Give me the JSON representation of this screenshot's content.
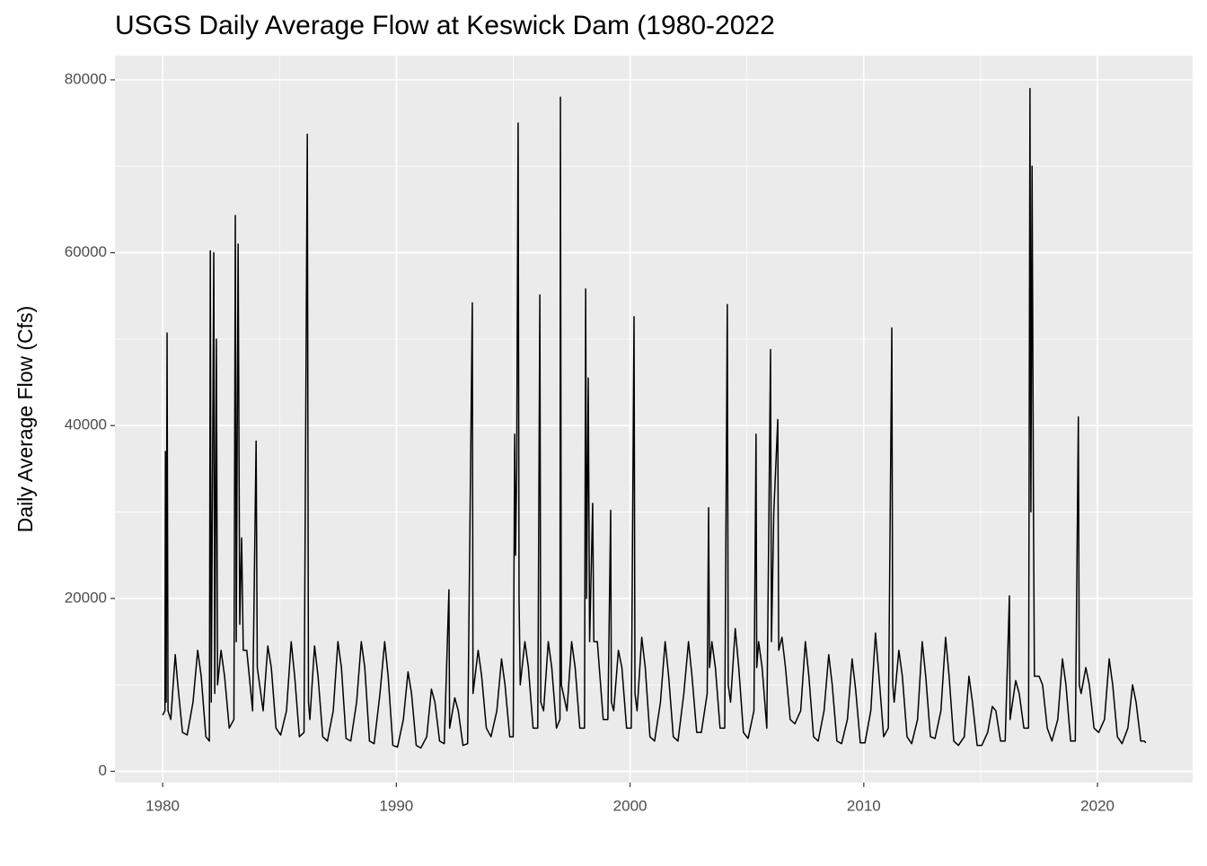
{
  "chart_data": {
    "type": "line",
    "title": "USGS Daily Average Flow at Keswick Dam (1980-2022",
    "y_label": "Daily Average Flow (Cfs)",
    "color": "#000000",
    "grid": true,
    "xlim": [
      1977.96,
      2024.07
    ],
    "xticks": [
      1980,
      1990,
      2000,
      2010,
      2020
    ],
    "ylim": [
      -1300,
      82800
    ],
    "yticks": [
      0,
      20000,
      40000,
      60000,
      80000
    ],
    "x": [
      1980.0,
      1980.1,
      1980.12,
      1980.15,
      1980.19,
      1980.23,
      1980.35,
      1980.54,
      1980.65,
      1980.85,
      1981.05,
      1981.3,
      1981.5,
      1981.65,
      1981.85,
      1982.0,
      1982.04,
      1982.08,
      1982.19,
      1982.23,
      1982.3,
      1982.35,
      1982.5,
      1982.65,
      1982.85,
      1983.05,
      1983.11,
      1983.15,
      1983.23,
      1983.3,
      1983.38,
      1983.45,
      1983.6,
      1983.85,
      1984.0,
      1984.05,
      1984.3,
      1984.5,
      1984.65,
      1984.85,
      1985.05,
      1985.3,
      1985.5,
      1985.65,
      1985.85,
      1986.05,
      1986.19,
      1986.24,
      1986.3,
      1986.5,
      1986.65,
      1986.85,
      1987.05,
      1987.3,
      1987.5,
      1987.65,
      1987.85,
      1988.05,
      1988.3,
      1988.5,
      1988.65,
      1988.85,
      1989.05,
      1989.3,
      1989.5,
      1989.65,
      1989.85,
      1990.05,
      1990.3,
      1990.5,
      1990.65,
      1990.85,
      1991.05,
      1991.3,
      1991.5,
      1991.65,
      1991.85,
      1992.05,
      1992.25,
      1992.28,
      1992.5,
      1992.65,
      1992.85,
      1993.05,
      1993.25,
      1993.28,
      1993.5,
      1993.65,
      1993.85,
      1994.05,
      1994.3,
      1994.5,
      1994.65,
      1994.85,
      1995.0,
      1995.06,
      1995.1,
      1995.15,
      1995.21,
      1995.25,
      1995.3,
      1995.5,
      1995.65,
      1995.85,
      1996.05,
      1996.14,
      1996.18,
      1996.3,
      1996.5,
      1996.65,
      1996.85,
      1997.0,
      1997.02,
      1997.06,
      1997.3,
      1997.5,
      1997.65,
      1997.85,
      1998.05,
      1998.1,
      1998.14,
      1998.21,
      1998.27,
      1998.4,
      1998.45,
      1998.6,
      1998.85,
      1999.05,
      1999.17,
      1999.2,
      1999.3,
      1999.5,
      1999.65,
      1999.85,
      2000.05,
      2000.17,
      2000.21,
      2000.3,
      2000.5,
      2000.65,
      2000.85,
      2001.05,
      2001.3,
      2001.5,
      2001.65,
      2001.85,
      2002.05,
      2002.3,
      2002.5,
      2002.65,
      2002.85,
      2003.05,
      2003.3,
      2003.36,
      2003.4,
      2003.5,
      2003.65,
      2003.85,
      2004.05,
      2004.16,
      2004.2,
      2004.3,
      2004.5,
      2004.65,
      2004.85,
      2005.05,
      2005.3,
      2005.39,
      2005.42,
      2005.5,
      2005.65,
      2005.85,
      2006.01,
      2006.05,
      2006.15,
      2006.32,
      2006.36,
      2006.5,
      2006.65,
      2006.85,
      2007.05,
      2007.3,
      2007.5,
      2007.65,
      2007.85,
      2008.05,
      2008.3,
      2008.5,
      2008.65,
      2008.85,
      2009.05,
      2009.3,
      2009.5,
      2009.65,
      2009.85,
      2010.05,
      2010.3,
      2010.5,
      2010.65,
      2010.85,
      2011.05,
      2011.2,
      2011.24,
      2011.3,
      2011.5,
      2011.65,
      2011.85,
      2012.05,
      2012.3,
      2012.5,
      2012.65,
      2012.85,
      2013.05,
      2013.3,
      2013.5,
      2013.65,
      2013.85,
      2014.05,
      2014.3,
      2014.5,
      2014.65,
      2014.85,
      2015.05,
      2015.3,
      2015.5,
      2015.65,
      2015.85,
      2016.05,
      2016.23,
      2016.26,
      2016.5,
      2016.65,
      2016.85,
      2017.05,
      2017.11,
      2017.15,
      2017.2,
      2017.26,
      2017.3,
      2017.5,
      2017.65,
      2017.85,
      2018.05,
      2018.3,
      2018.5,
      2018.65,
      2018.85,
      2019.05,
      2019.18,
      2019.22,
      2019.3,
      2019.5,
      2019.65,
      2019.85,
      2020.05,
      2020.3,
      2020.5,
      2020.65,
      2020.85,
      2021.05,
      2021.3,
      2021.5,
      2021.65,
      2021.85,
      2022.0,
      2022.07
    ],
    "values": [
      6500,
      7000,
      37000,
      8000,
      50700,
      7000,
      6000,
      13500,
      10000,
      4500,
      4200,
      8000,
      14000,
      11000,
      4000,
      3500,
      60200,
      8000,
      60000,
      9000,
      50000,
      10000,
      14000,
      11000,
      5000,
      6000,
      64300,
      15000,
      61000,
      17000,
      27000,
      14000,
      14000,
      7000,
      38200,
      12000,
      7000,
      14500,
      12000,
      5000,
      4200,
      7000,
      15000,
      11000,
      4000,
      4500,
      73700,
      8000,
      6000,
      14500,
      11000,
      4000,
      3500,
      7000,
      15000,
      12000,
      3800,
      3500,
      8000,
      15000,
      12000,
      3500,
      3200,
      9000,
      15000,
      11000,
      3000,
      2800,
      6000,
      11500,
      9000,
      3000,
      2700,
      4000,
      9500,
      8000,
      3500,
      3200,
      21000,
      5000,
      8500,
      7000,
      3000,
      3200,
      54200,
      9000,
      14000,
      11000,
      5000,
      4000,
      7000,
      13000,
      10000,
      4000,
      4000,
      39000,
      25000,
      35000,
      75000,
      20000,
      10000,
      15000,
      12000,
      5000,
      5000,
      55100,
      8000,
      7000,
      15000,
      12000,
      5000,
      6000,
      78000,
      10000,
      7000,
      15000,
      12000,
      5000,
      5000,
      55800,
      20000,
      45500,
      15000,
      31000,
      15000,
      15000,
      6000,
      6000,
      30200,
      8000,
      7000,
      14000,
      12000,
      5000,
      5000,
      52600,
      9000,
      7000,
      15500,
      12000,
      4000,
      3500,
      8000,
      15000,
      11000,
      4000,
      3500,
      9000,
      15000,
      11000,
      4500,
      4500,
      9000,
      30500,
      12000,
      15000,
      12000,
      5000,
      5000,
      54000,
      10000,
      8000,
      16500,
      12000,
      4500,
      3800,
      7000,
      39000,
      12000,
      15000,
      12000,
      5000,
      48800,
      15000,
      30000,
      40700,
      14000,
      15500,
      12000,
      6000,
      5500,
      7000,
      15000,
      11000,
      4000,
      3500,
      7000,
      13500,
      10000,
      3500,
      3200,
      6000,
      13000,
      9500,
      3300,
      3300,
      7000,
      16000,
      11000,
      4000,
      5000,
      51300,
      10000,
      8000,
      14000,
      11000,
      4000,
      3200,
      6000,
      15000,
      11000,
      4000,
      3800,
      7000,
      15500,
      11000,
      3500,
      3000,
      4000,
      11000,
      8000,
      3000,
      3000,
      4500,
      7500,
      7000,
      3500,
      3500,
      20300,
      6000,
      10500,
      9000,
      5000,
      5000,
      79000,
      30000,
      70000,
      30500,
      11000,
      11000,
      10000,
      5000,
      3500,
      6000,
      13000,
      10000,
      3500,
      3500,
      41000,
      10000,
      9000,
      12000,
      10000,
      5000,
      4500,
      6000,
      13000,
      10000,
      4000,
      3200,
      5000,
      10000,
      8000,
      3500,
      3500,
      3300
    ]
  }
}
